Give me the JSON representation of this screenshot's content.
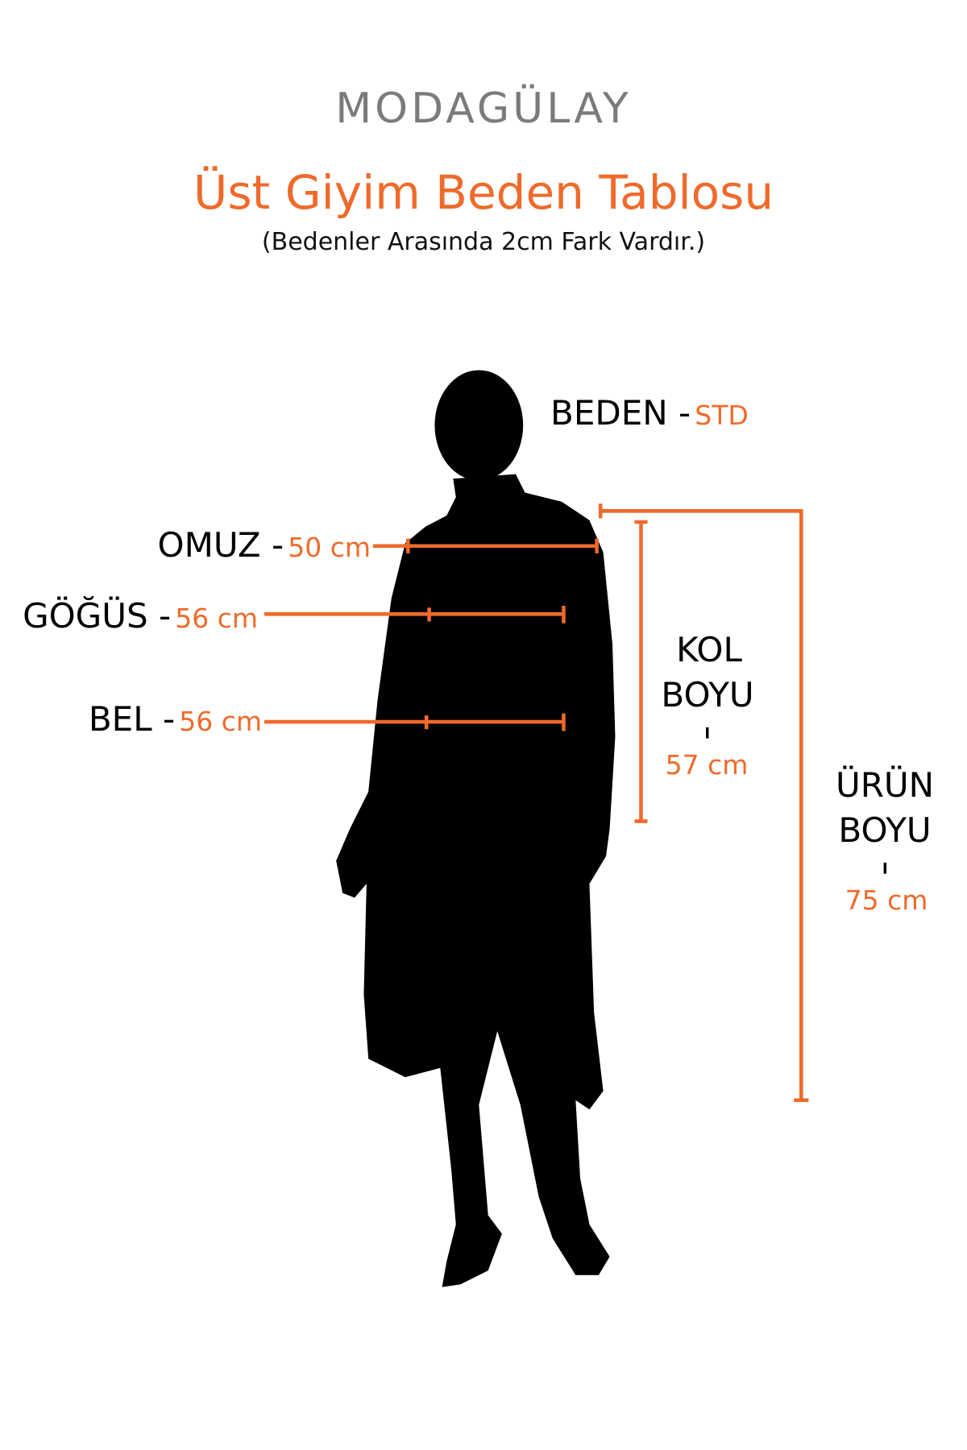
{
  "brand": {
    "logo": "MODAGÜLAY"
  },
  "header": {
    "title": "Üst Giyim Beden Tablosu",
    "subtitle": "(Bedenler Arasında 2cm Fark Vardır.)"
  },
  "size": {
    "label": "BEDEN -",
    "value": "STD"
  },
  "measurements": {
    "omuz": {
      "label": "OMUZ -",
      "value": "50 cm"
    },
    "gogus": {
      "label": "GÖĞÜS -",
      "value": "56 cm"
    },
    "bel": {
      "label": "BEL -",
      "value": "56 cm"
    },
    "kol_boyu": {
      "label_line1": "KOL",
      "label_line2": "BOYU",
      "value": "57 cm"
    },
    "urun_boyu": {
      "label_line1": "ÜRÜN",
      "label_line2": "BOYU",
      "value": "75 cm"
    }
  },
  "colors": {
    "accent": "#ef6a2b",
    "text": "#000000",
    "logo": "#7b7b7b",
    "silhouette": "#000000"
  },
  "icons": {
    "figure": "person-silhouette-icon"
  }
}
